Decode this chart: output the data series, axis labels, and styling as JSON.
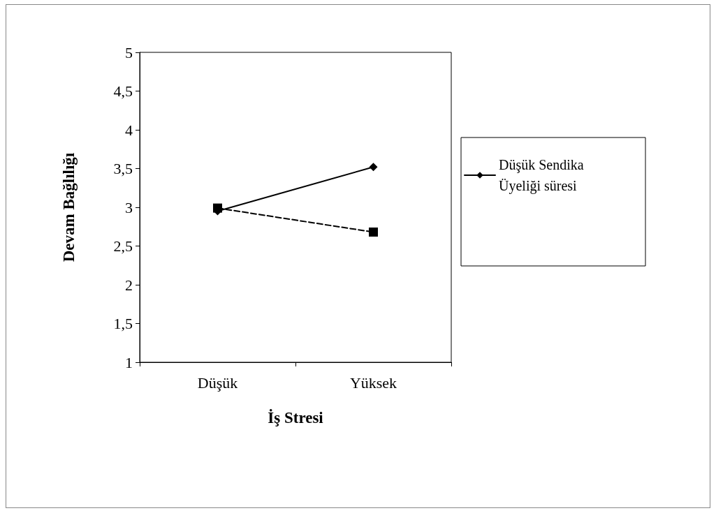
{
  "chart_data": {
    "type": "line",
    "xlabel": "İş Stresi",
    "ylabel": "Devam Bağlılığı",
    "categories": [
      "Düşük",
      "Yüksek"
    ],
    "series": [
      {
        "name": "Düşük Sendika Üyeliği süresi",
        "color": "#000000",
        "values": [
          2.95,
          3.52
        ],
        "marker": "diamond",
        "line_style": "solid"
      },
      {
        "color": "#000000",
        "values": [
          2.99,
          2.68
        ],
        "marker": "square",
        "line_style": "dashed"
      }
    ],
    "ylim": [
      1,
      5
    ],
    "yticks": [
      1,
      {
        "value": 1.5,
        "label": "1,5"
      },
      2,
      {
        "value": 2.5,
        "label": "2,5"
      },
      3,
      {
        "value": 3.5,
        "label": "3,5"
      },
      4,
      {
        "value": 4.5,
        "label": "4,5"
      },
      5
    ],
    "grid": false,
    "legend": "right"
  }
}
